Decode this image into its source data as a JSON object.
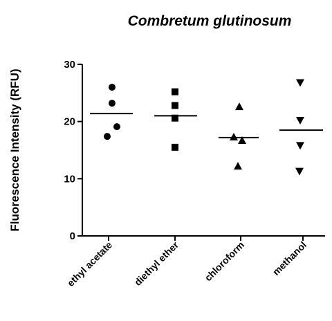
{
  "chart_data": {
    "type": "scatter",
    "title": "Combretum glutinosum",
    "xlabel": "",
    "ylabel": "Fluorescence Intensity (RFU)",
    "ylim": [
      0,
      30
    ],
    "yticks": [
      0,
      10,
      20,
      30
    ],
    "grid": false,
    "categories": [
      "ethyl acetate",
      "diethyl ether",
      "chloroform",
      "methanol"
    ],
    "series": [
      {
        "category": "ethyl acetate",
        "marker": "circle",
        "values": [
          26.0,
          23.2,
          19.1,
          17.4
        ],
        "mean": 21.4
      },
      {
        "category": "diethyl ether",
        "marker": "square",
        "values": [
          25.2,
          22.8,
          20.6,
          15.5
        ],
        "mean": 21.0
      },
      {
        "category": "chloroform",
        "marker": "triangle-up",
        "values": [
          22.6,
          17.3,
          16.7,
          12.2
        ],
        "mean": 17.2
      },
      {
        "category": "methanol",
        "marker": "triangle-down",
        "values": [
          26.8,
          20.2,
          15.8,
          11.3
        ],
        "mean": 18.5
      }
    ]
  }
}
